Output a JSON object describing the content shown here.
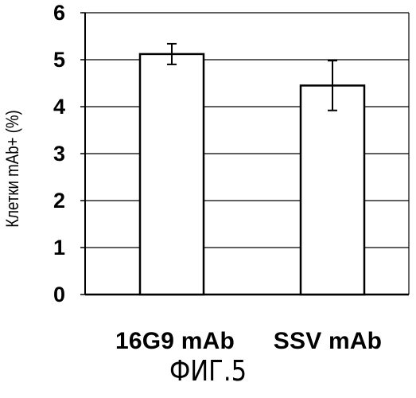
{
  "chart_data": {
    "type": "bar",
    "categories": [
      "16G9 mAb",
      "SSV mAb"
    ],
    "values": [
      5.12,
      4.45
    ],
    "error": [
      0.22,
      0.53
    ],
    "ylabel": "Клетки mAb+ (%)",
    "xlabel": "",
    "ylim": [
      0,
      6
    ],
    "yticks": [
      "0",
      "1",
      "2",
      "3",
      "4",
      "5",
      "6"
    ],
    "grid": true,
    "legend": "none",
    "colors": {
      "bar_fill": "#ffffff",
      "bar_stroke": "#000000",
      "grid": "#000000"
    }
  },
  "caption": "ФИГ.5"
}
